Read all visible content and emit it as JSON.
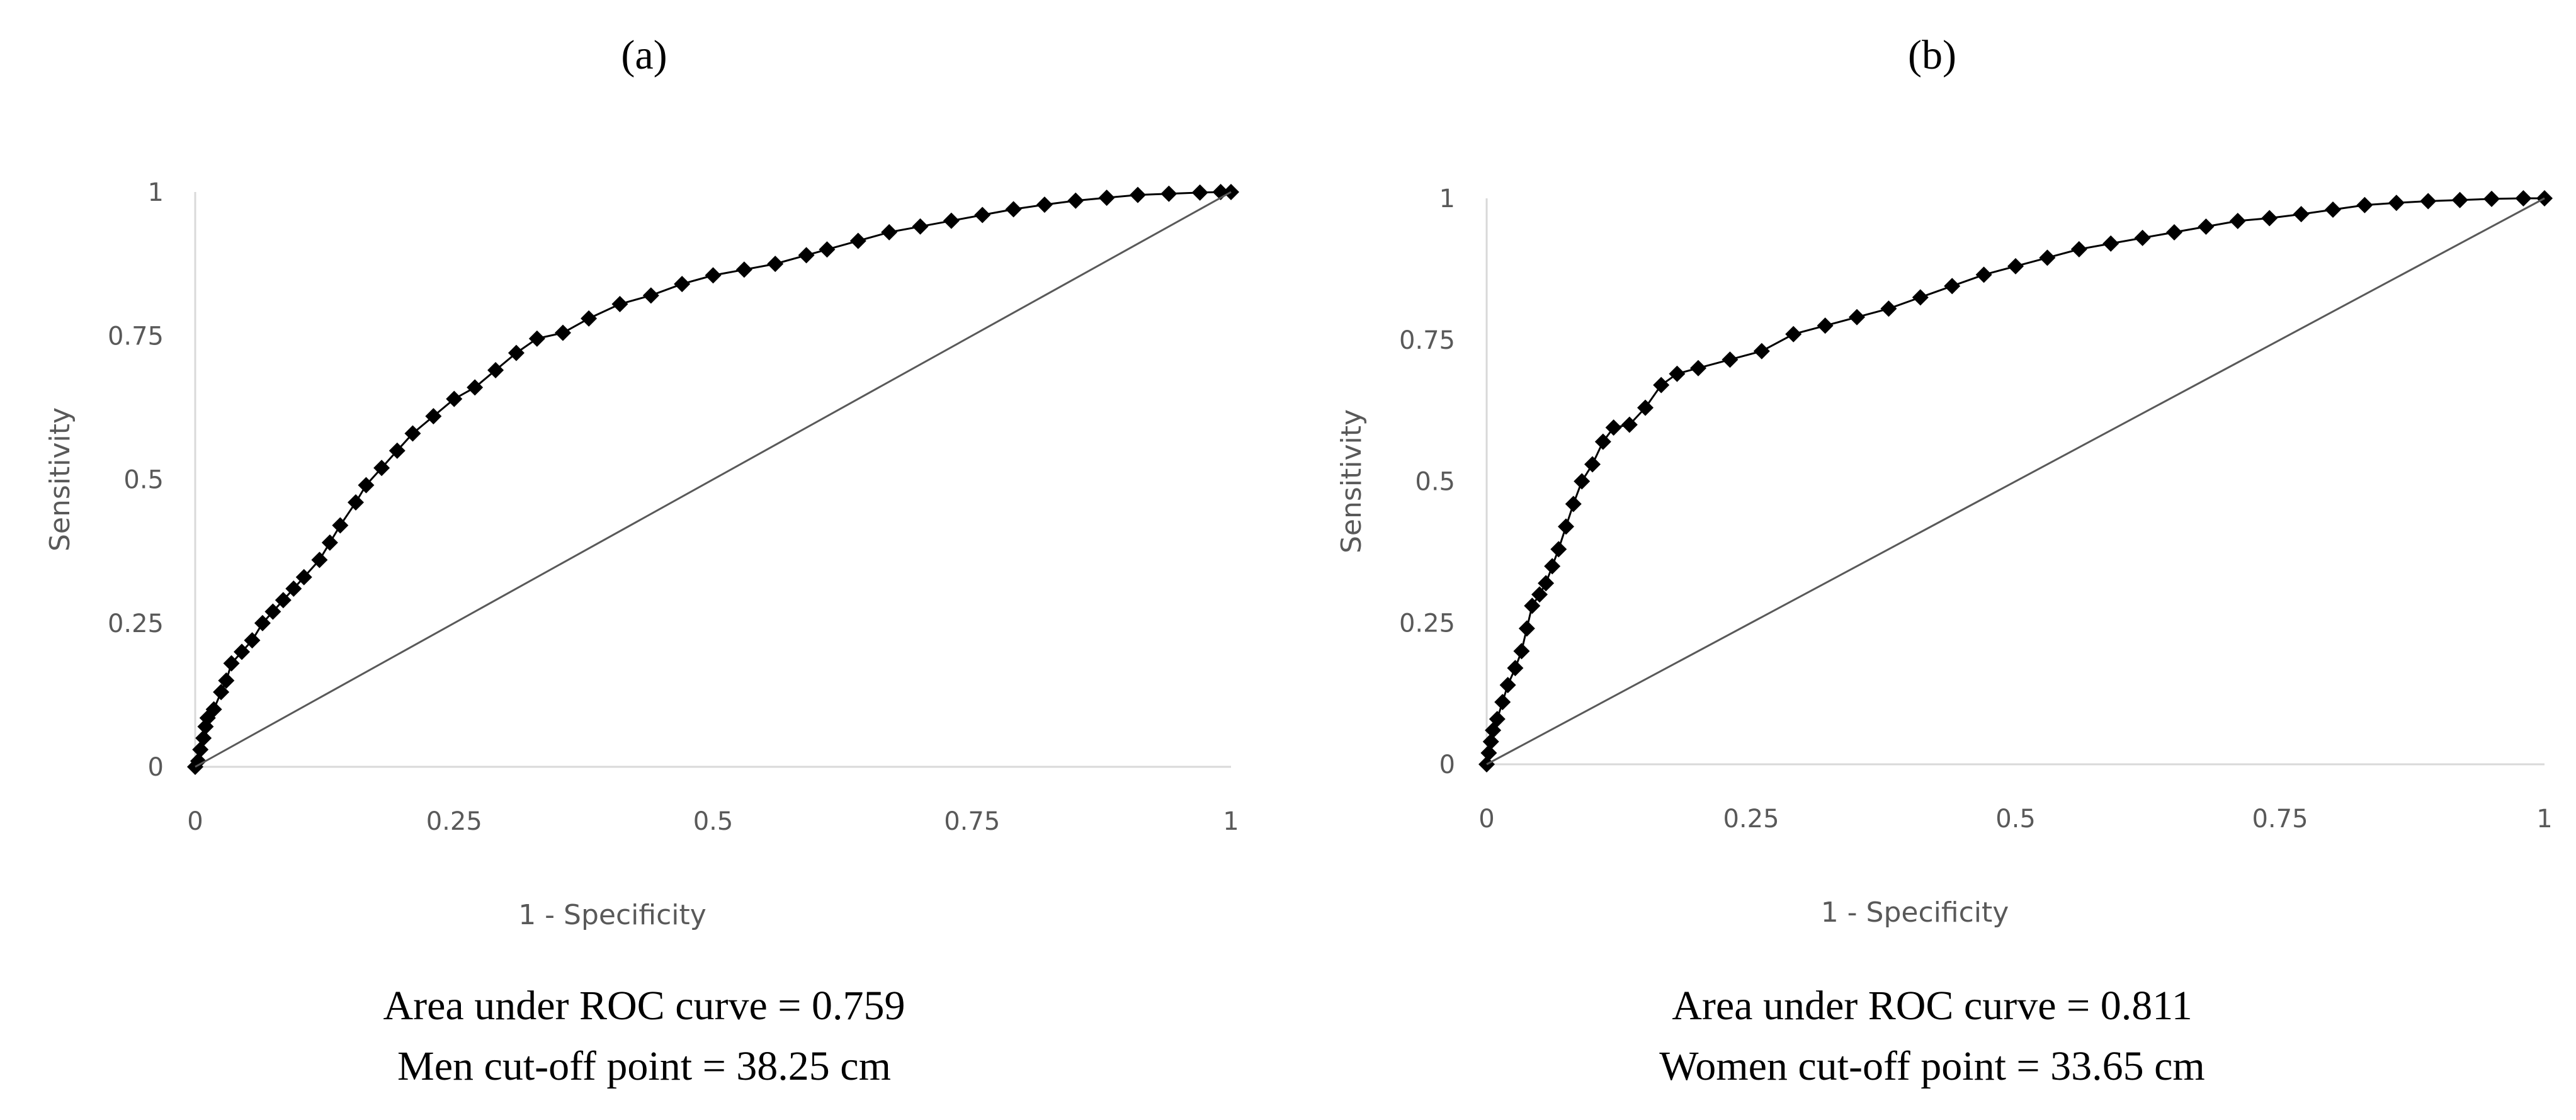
{
  "chart_data": [
    {
      "type": "line",
      "panel_label": "(a)",
      "xlabel": "1 - Specificity",
      "ylabel": "Sensitivity",
      "xlim": [
        0,
        1
      ],
      "ylim": [
        0,
        1
      ],
      "x_ticks": [
        "0",
        "0.25",
        "0.5",
        "0.75",
        "1"
      ],
      "y_ticks": [
        "0",
        "0.25",
        "0.5",
        "0.75",
        "1"
      ],
      "caption_lines": [
        "Area under ROC curve = 0.759",
        "Men cut-off point = 38.25 cm"
      ],
      "series": [
        {
          "name": "ROC",
          "points": [
            [
              0,
              0
            ],
            [
              0.003,
              0.01
            ],
            [
              0.005,
              0.03
            ],
            [
              0.008,
              0.05
            ],
            [
              0.01,
              0.07
            ],
            [
              0.012,
              0.085
            ],
            [
              0.018,
              0.1
            ],
            [
              0.025,
              0.13
            ],
            [
              0.03,
              0.15
            ],
            [
              0.035,
              0.18
            ],
            [
              0.045,
              0.2
            ],
            [
              0.055,
              0.22
            ],
            [
              0.065,
              0.25
            ],
            [
              0.075,
              0.27
            ],
            [
              0.085,
              0.29
            ],
            [
              0.095,
              0.31
            ],
            [
              0.105,
              0.33
            ],
            [
              0.12,
              0.36
            ],
            [
              0.13,
              0.39
            ],
            [
              0.14,
              0.42
            ],
            [
              0.155,
              0.46
            ],
            [
              0.165,
              0.49
            ],
            [
              0.18,
              0.52
            ],
            [
              0.195,
              0.55
            ],
            [
              0.21,
              0.58
            ],
            [
              0.23,
              0.61
            ],
            [
              0.25,
              0.64
            ],
            [
              0.27,
              0.66
            ],
            [
              0.29,
              0.69
            ],
            [
              0.31,
              0.72
            ],
            [
              0.33,
              0.745
            ],
            [
              0.355,
              0.755
            ],
            [
              0.38,
              0.78
            ],
            [
              0.41,
              0.805
            ],
            [
              0.44,
              0.82
            ],
            [
              0.47,
              0.84
            ],
            [
              0.5,
              0.855
            ],
            [
              0.53,
              0.865
            ],
            [
              0.56,
              0.875
            ],
            [
              0.59,
              0.89
            ],
            [
              0.61,
              0.9
            ],
            [
              0.64,
              0.915
            ],
            [
              0.67,
              0.93
            ],
            [
              0.7,
              0.94
            ],
            [
              0.73,
              0.95
            ],
            [
              0.76,
              0.96
            ],
            [
              0.79,
              0.97
            ],
            [
              0.82,
              0.978
            ],
            [
              0.85,
              0.985
            ],
            [
              0.88,
              0.99
            ],
            [
              0.91,
              0.995
            ],
            [
              0.94,
              0.997
            ],
            [
              0.97,
              0.999
            ],
            [
              0.99,
              1.0
            ],
            [
              1.0,
              1.0
            ]
          ]
        },
        {
          "name": "Reference",
          "points": [
            [
              0,
              0
            ],
            [
              1,
              1
            ]
          ]
        }
      ]
    },
    {
      "type": "line",
      "panel_label": "(b)",
      "xlabel": "1 - Specificity",
      "ylabel": "Sensitivity",
      "xlim": [
        0,
        1
      ],
      "ylim": [
        0,
        1
      ],
      "x_ticks": [
        "0",
        "0.25",
        "0.5",
        "0.75",
        "1"
      ],
      "y_ticks": [
        "0",
        "0.25",
        "0.5",
        "0.75",
        "1"
      ],
      "caption_lines": [
        "Area under ROC curve = 0.811",
        "Women cut-off point = 33.65 cm"
      ],
      "series": [
        {
          "name": "ROC",
          "points": [
            [
              0,
              0
            ],
            [
              0.002,
              0.02
            ],
            [
              0.004,
              0.04
            ],
            [
              0.006,
              0.06
            ],
            [
              0.01,
              0.08
            ],
            [
              0.015,
              0.11
            ],
            [
              0.02,
              0.14
            ],
            [
              0.027,
              0.17
            ],
            [
              0.033,
              0.2
            ],
            [
              0.038,
              0.24
            ],
            [
              0.043,
              0.28
            ],
            [
              0.05,
              0.3
            ],
            [
              0.056,
              0.32
            ],
            [
              0.062,
              0.35
            ],
            [
              0.068,
              0.38
            ],
            [
              0.075,
              0.42
            ],
            [
              0.082,
              0.46
            ],
            [
              0.09,
              0.5
            ],
            [
              0.1,
              0.53
            ],
            [
              0.11,
              0.57
            ],
            [
              0.12,
              0.595
            ],
            [
              0.135,
              0.6
            ],
            [
              0.15,
              0.63
            ],
            [
              0.165,
              0.67
            ],
            [
              0.18,
              0.69
            ],
            [
              0.2,
              0.7
            ],
            [
              0.23,
              0.715
            ],
            [
              0.26,
              0.73
            ],
            [
              0.29,
              0.76
            ],
            [
              0.32,
              0.775
            ],
            [
              0.35,
              0.79
            ],
            [
              0.38,
              0.805
            ],
            [
              0.41,
              0.825
            ],
            [
              0.44,
              0.845
            ],
            [
              0.47,
              0.865
            ],
            [
              0.5,
              0.88
            ],
            [
              0.53,
              0.895
            ],
            [
              0.56,
              0.91
            ],
            [
              0.59,
              0.92
            ],
            [
              0.62,
              0.93
            ],
            [
              0.65,
              0.94
            ],
            [
              0.68,
              0.95
            ],
            [
              0.71,
              0.96
            ],
            [
              0.74,
              0.965
            ],
            [
              0.77,
              0.972
            ],
            [
              0.8,
              0.98
            ],
            [
              0.83,
              0.988
            ],
            [
              0.86,
              0.992
            ],
            [
              0.89,
              0.995
            ],
            [
              0.92,
              0.997
            ],
            [
              0.95,
              0.999
            ],
            [
              0.98,
              1.0
            ],
            [
              1.0,
              1.0
            ]
          ]
        },
        {
          "name": "Reference",
          "points": [
            [
              0,
              0
            ],
            [
              1,
              1
            ]
          ]
        }
      ]
    }
  ]
}
